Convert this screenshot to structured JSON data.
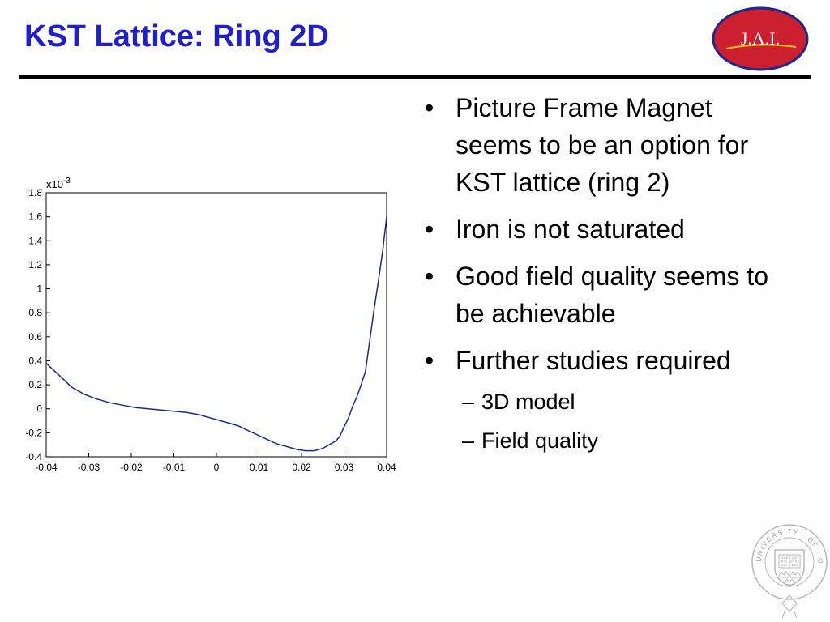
{
  "slide": {
    "title": "KST Lattice: Ring 2D"
  },
  "logo": {
    "text": "J.A.I.",
    "colors": {
      "fill": "#cc1f2f",
      "outline": "#1c2a8c",
      "text": "#ffffff"
    }
  },
  "bullets": [
    {
      "text": "Picture Frame Magnet seems to be an option for KST lattice (ring 2)"
    },
    {
      "text": "Iron is not saturated"
    },
    {
      "text": "Good field quality seems to be achievable"
    },
    {
      "text": "Further studies required",
      "sub": [
        "3D model",
        "Field quality"
      ]
    }
  ],
  "crest": {
    "text": "UNIVERSITY · OF · OXFORD",
    "book_text": [
      "DOMI",
      "NVS",
      "ILLV",
      "SAPI",
      "ENTIA",
      "MEA"
    ]
  },
  "chart_data": {
    "type": "line",
    "title": "",
    "xlabel": "",
    "ylabel": "",
    "y_exponent_label": "x10",
    "y_exponent_power": "-3",
    "xlim": [
      -0.04,
      0.04
    ],
    "ylim": [
      -0.4,
      1.8
    ],
    "xticks": [
      "-0.04",
      "-0.03",
      "-0.02",
      "-0.01",
      "0",
      "0.01",
      "0.02",
      "0.03",
      "0.04"
    ],
    "yticks": [
      "1.8",
      "1.6",
      "1.4",
      "1.2",
      "1",
      "0.8",
      "0.6",
      "0.4",
      "0.2",
      "0",
      "-0.2",
      "-0.4"
    ],
    "grid": false,
    "line_color": "#1c2a8c",
    "series": [
      {
        "x": [
          -0.04,
          -0.037,
          -0.034,
          -0.031,
          -0.028,
          -0.025,
          -0.022,
          -0.019,
          -0.016,
          -0.013,
          -0.01,
          -0.007,
          -0.004,
          -0.001,
          0.002,
          0.005,
          0.008,
          0.011,
          0.014,
          0.017,
          0.019,
          0.021,
          0.023,
          0.025,
          0.026,
          0.028,
          0.029,
          0.03,
          0.031,
          0.032,
          0.033,
          0.034,
          0.035,
          0.036,
          0.037,
          0.038,
          0.039,
          0.0395,
          0.04
        ],
        "y": [
          0.38,
          0.28,
          0.18,
          0.12,
          0.08,
          0.05,
          0.03,
          0.01,
          0.0,
          -0.01,
          -0.02,
          -0.03,
          -0.05,
          -0.08,
          -0.11,
          -0.14,
          -0.19,
          -0.24,
          -0.29,
          -0.32,
          -0.34,
          -0.35,
          -0.35,
          -0.33,
          -0.31,
          -0.27,
          -0.23,
          -0.15,
          -0.08,
          0.02,
          0.1,
          0.2,
          0.31,
          0.56,
          0.82,
          1.05,
          1.3,
          1.45,
          1.6
        ]
      }
    ]
  }
}
